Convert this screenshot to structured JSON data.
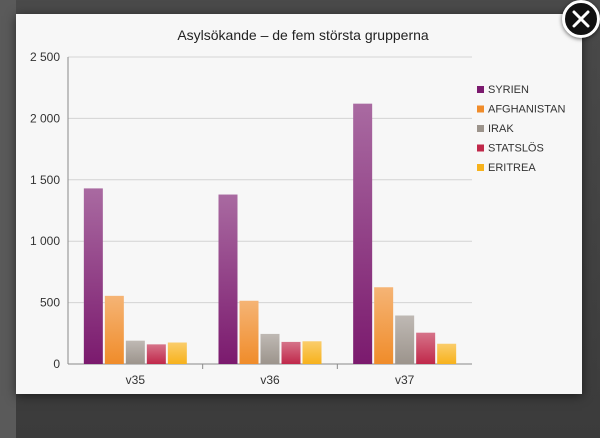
{
  "modal": {
    "close_icon": "close-icon"
  },
  "chart_data": {
    "type": "bar",
    "title": "Asylsökande – de fem största grupperna",
    "categories": [
      "v35",
      "v36",
      "v37"
    ],
    "ylim": [
      0,
      2500
    ],
    "yticks": [
      0,
      500,
      1000,
      1500,
      2000,
      2500
    ],
    "ytick_labels": [
      "0",
      "500",
      "1 000",
      "1 500",
      "2 000",
      "2 500"
    ],
    "grid": true,
    "legend_position": "right",
    "series": [
      {
        "name": "SYRIEN",
        "values": [
          1430,
          1380,
          2120
        ],
        "color": "#7b1a6e"
      },
      {
        "name": "AFGHANISTAN",
        "values": [
          555,
          515,
          625
        ],
        "color": "#f08c2a"
      },
      {
        "name": "IRAK",
        "values": [
          190,
          245,
          395
        ],
        "color": "#9c948c"
      },
      {
        "name": "STATSLÖS",
        "values": [
          160,
          180,
          255
        ],
        "color": "#c0284a"
      },
      {
        "name": "ERITREA",
        "values": [
          175,
          185,
          165
        ],
        "color": "#f7b21c"
      }
    ]
  }
}
